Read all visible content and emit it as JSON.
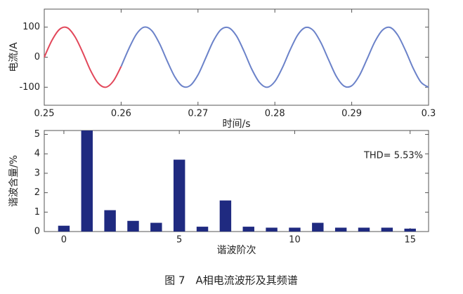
{
  "chart_data": [
    {
      "type": "line",
      "ylabel": "电流/A",
      "xlabel": "时间/s",
      "xlim": [
        0.25,
        0.3
      ],
      "ylim": [
        -160,
        160
      ],
      "xticks": [
        0.25,
        0.26,
        0.27,
        0.28,
        0.29,
        0.3
      ],
      "yticks": [
        -100,
        0,
        100
      ],
      "series": [
        {
          "color": "#e2475a",
          "x": [
            0.25,
            0.251,
            0.252,
            0.253,
            0.254,
            0.255,
            0.256,
            0.257,
            0.258,
            0.259,
            0.26
          ],
          "values": [
            0,
            56,
            93,
            98,
            68,
            16,
            -43,
            -86,
            -100,
            -79,
            -31
          ]
        },
        {
          "color": "#6b82c9",
          "x": [
            0.26,
            0.261,
            0.262,
            0.263,
            0.264,
            0.265,
            0.266,
            0.267,
            0.268,
            0.269,
            0.27,
            0.271,
            0.272,
            0.273,
            0.274,
            0.275,
            0.276,
            0.277,
            0.278,
            0.279,
            0.28,
            0.281,
            0.282,
            0.283,
            0.284,
            0.285,
            0.286,
            0.287,
            0.288,
            0.289,
            0.29,
            0.291,
            0.292,
            0.293,
            0.294,
            0.295,
            0.296,
            0.297,
            0.298,
            0.299,
            0.3
          ],
          "values": [
            -31,
            28,
            77,
            100,
            88,
            45,
            -13,
            -66,
            -97,
            -94,
            -59,
            -3,
            54,
            92,
            98,
            71,
            19,
            -40,
            -84,
            -100,
            -81,
            -34,
            25,
            75,
            99,
            89,
            48,
            -9,
            -64,
            -96,
            -95,
            -61,
            -6,
            51,
            90,
            99,
            73,
            22,
            -37,
            -83,
            -100
          ]
        }
      ]
    },
    {
      "type": "bar",
      "ylabel": "谐波含量/%",
      "xlabel": "谐波阶次",
      "annotation": "THD= 5.53%",
      "color": "#1f2a80",
      "x": [
        0,
        1,
        2,
        3,
        4,
        5,
        6,
        7,
        8,
        9,
        10,
        11,
        12,
        13,
        14,
        15
      ],
      "values": [
        0.3,
        5.2,
        1.1,
        0.55,
        0.45,
        3.7,
        0.25,
        1.6,
        0.25,
        0.2,
        0.2,
        0.45,
        0.2,
        0.2,
        0.2,
        0.15
      ],
      "xlim": [
        -0.85,
        15.8
      ],
      "ylim": [
        0,
        5.2
      ],
      "xticks": [
        0,
        5,
        10,
        15
      ],
      "yticks": [
        0,
        1,
        2,
        3,
        4,
        5
      ]
    }
  ],
  "caption": "图 7　A相电流波形及其频谱"
}
